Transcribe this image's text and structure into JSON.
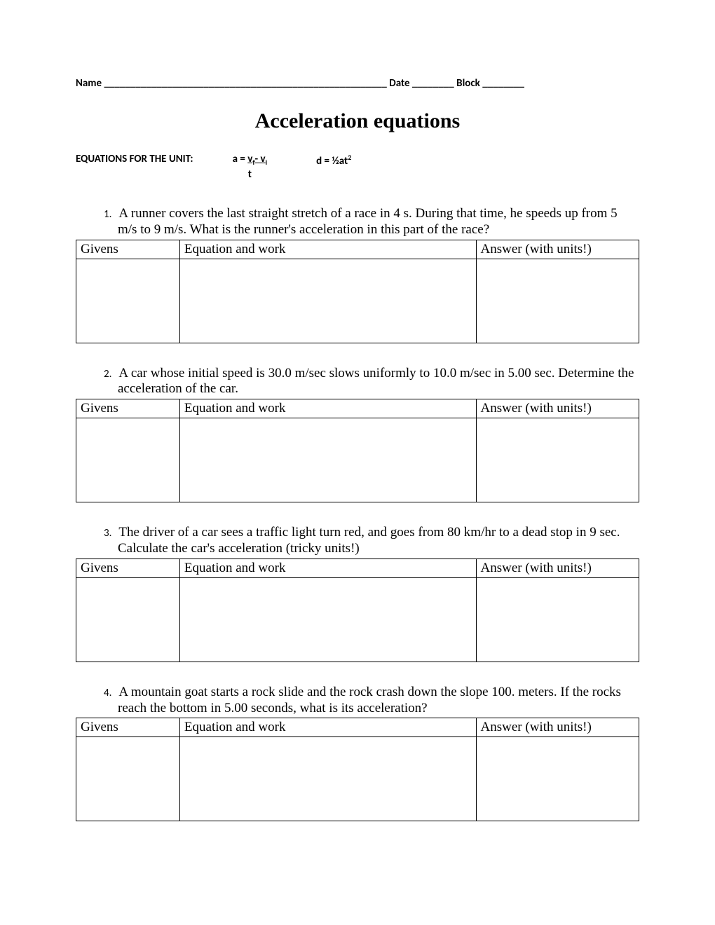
{
  "header": {
    "name_label": "Name",
    "name_blank": "______________________________________________________",
    "date_label": "Date",
    "date_blank": "________",
    "block_label": "Block",
    "block_blank": "________"
  },
  "title": "Acceleration equations",
  "equations": {
    "label": "EQUATIONS FOR THE UNIT:",
    "eq1_lhs": "a = ",
    "eq1_num_a": "v",
    "eq1_num_a_sub": "f",
    "eq1_num_mid": "- v",
    "eq1_num_b_sub": "i",
    "eq1_denom": "t",
    "eq2_pre": "d = ½at",
    "eq2_sup": "2"
  },
  "table_headers": {
    "givens": "Givens",
    "work": "Equation and work",
    "answer": "Answer (with units!)"
  },
  "questions": [
    {
      "num": "1.",
      "text": "A runner covers the last straight stretch of a race in 4 s.  During that time, he speeds up from 5 m/s to 9 m/s.  What is the runner's acceleration in this part of the race?"
    },
    {
      "num": "2.",
      "text": "A car whose initial speed is 30.0 m/sec slows uniformly to 10.0 m/sec in 5.00 sec.  Determine the acceleration of the car."
    },
    {
      "num": "3.",
      "text": "The driver of a car sees a traffic light turn red, and goes from 80 km/hr to a dead stop in 9 sec.  Calculate the car's acceleration (tricky units!)"
    },
    {
      "num": "4.",
      "text": "A mountain goat starts a rock slide and the rock crash down the slope 100. meters.  If the rocks reach the bottom in 5.00 seconds, what is its acceleration?"
    }
  ]
}
